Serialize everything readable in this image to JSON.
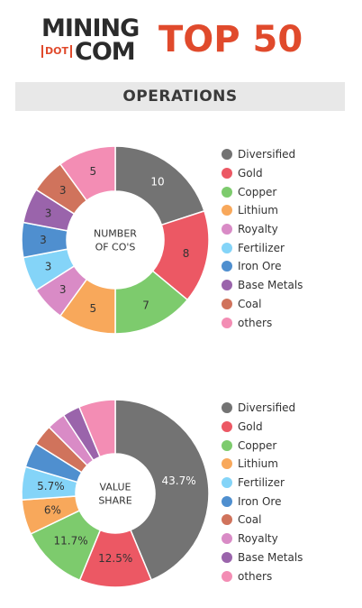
{
  "header": {
    "logo_line1": "MINING",
    "logo_dot": "DOT",
    "logo_line2": "COM",
    "title": "TOP 50"
  },
  "section": {
    "title": "OPERATIONS"
  },
  "colors": {
    "Diversified": "#737373",
    "Gold": "#ec5864",
    "Copper": "#7dcb6d",
    "Lithium": "#f8a85b",
    "Royalty": "#d98bc6",
    "Fertilizer": "#84d4f8",
    "Iron Ore": "#4f8fcf",
    "Base Metals": "#9a64ab",
    "Coal": "#d0735c",
    "others": "#f38db4"
  },
  "chart_data": [
    {
      "type": "pie",
      "center_label": "NUMBER\nOF CO'S",
      "categories": [
        "Diversified",
        "Gold",
        "Copper",
        "Lithium",
        "Royalty",
        "Fertilizer",
        "Iron Ore",
        "Base Metals",
        "Coal",
        "others"
      ],
      "values": [
        10,
        8,
        7,
        5,
        3,
        3,
        3,
        3,
        3,
        5
      ],
      "labels": [
        "10",
        "8",
        "7",
        "5",
        "3",
        "3",
        "3",
        "3",
        "3",
        "5"
      ],
      "legend": [
        "Diversified",
        "Gold",
        "Copper",
        "Lithium",
        "Royalty",
        "Fertilizer",
        "Iron Ore",
        "Base Metals",
        "Coal",
        "others"
      ],
      "legend_placement": "right"
    },
    {
      "type": "pie",
      "center_label": "VALUE\nSHARE",
      "categories": [
        "Diversified",
        "Gold",
        "Copper",
        "Lithium",
        "Fertilizer",
        "Iron Ore",
        "Coal",
        "Royalty",
        "Base Metals",
        "others"
      ],
      "values": [
        43.7,
        12.5,
        11.7,
        6,
        5.7,
        4.3,
        3.6,
        3.2,
        3.0,
        6.3
      ],
      "labels": [
        "43.7%",
        "12.5%",
        "11.7%",
        "6%",
        "5.7%",
        "",
        "",
        "",
        "",
        ""
      ],
      "legend": [
        "Diversified",
        "Gold",
        "Copper",
        "Lithium",
        "Fertilizer",
        "Iron Ore",
        "Coal",
        "Royalty",
        "Base Metals",
        "others"
      ],
      "legend_placement": "right"
    }
  ]
}
